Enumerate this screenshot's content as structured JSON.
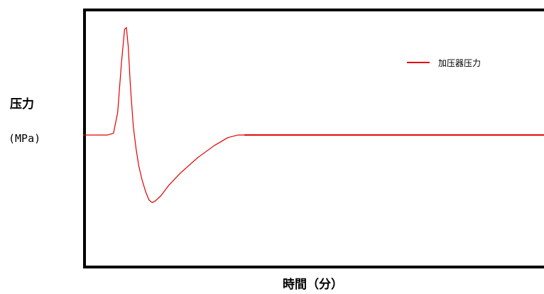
{
  "chart_data": {
    "type": "line",
    "title": "",
    "ylabel": "压力",
    "yunit": "(MPa)",
    "xlabel": "時間（分）",
    "grid": false,
    "legend_position": "top-right",
    "series": [
      {
        "name": "加压器压力",
        "color": "#e00000",
        "x": [
          0,
          3.4,
          5.3,
          6.6,
          7.5,
          8.3,
          9.0,
          9.4,
          9.8,
          10.3,
          10.9,
          11.5,
          12.1,
          12.8,
          13.6,
          14.3,
          15.0,
          15.7,
          16.9,
          18.6,
          21.1,
          24.9,
          28.5,
          31.4,
          33.6,
          35.0,
          100
        ],
        "y": [
          7.7,
          7.7,
          7.7,
          7.8,
          9.0,
          11.8,
          13.8,
          13.9,
          12.8,
          10.4,
          8.2,
          6.9,
          5.9,
          5.1,
          4.4,
          3.95,
          3.8,
          3.9,
          4.2,
          4.8,
          5.5,
          6.4,
          7.1,
          7.55,
          7.7,
          7.7,
          7.7
        ]
      }
    ]
  },
  "colors": {
    "axis": "#000000",
    "series_line": "#e00000"
  }
}
